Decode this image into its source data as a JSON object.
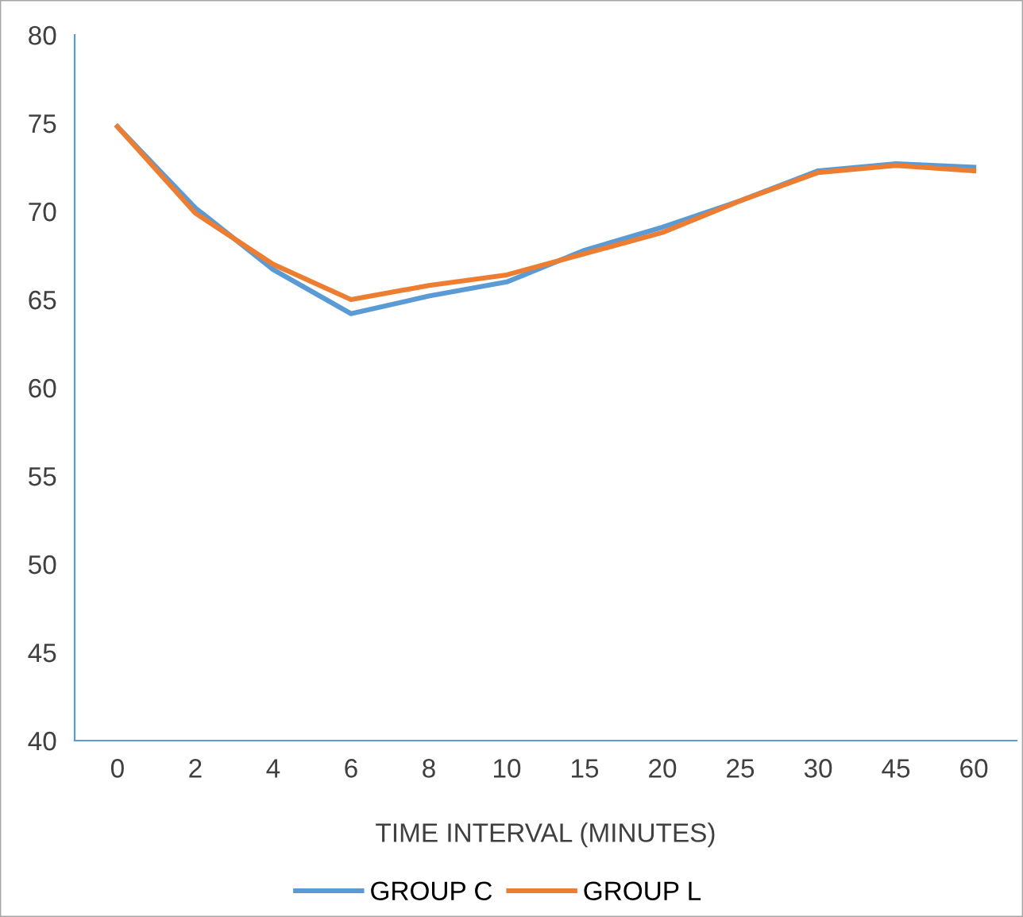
{
  "chart_data": {
    "type": "line",
    "xlabel": "TIME INTERVAL (MINUTES)",
    "categories": [
      "0",
      "2",
      "4",
      "6",
      "8",
      "10",
      "15",
      "20",
      "25",
      "30",
      "45",
      "60"
    ],
    "series": [
      {
        "name": "GROUP C",
        "color": "#5b9bd5",
        "values": [
          74.8,
          70.2,
          66.7,
          64.2,
          65.2,
          66.0,
          67.8,
          69.1,
          70.6,
          72.3,
          72.7,
          72.5
        ]
      },
      {
        "name": "GROUP L",
        "color": "#ed7d31",
        "values": [
          74.8,
          69.9,
          67.0,
          65.0,
          65.8,
          66.4,
          67.6,
          68.8,
          70.6,
          72.2,
          72.6,
          72.3
        ]
      }
    ],
    "ylim": [
      40,
      80
    ],
    "yticks": [
      40,
      45,
      50,
      55,
      60,
      65,
      70,
      75,
      80
    ],
    "grid": false,
    "legend": "bottom",
    "marker": "none",
    "line_style": "solid"
  }
}
